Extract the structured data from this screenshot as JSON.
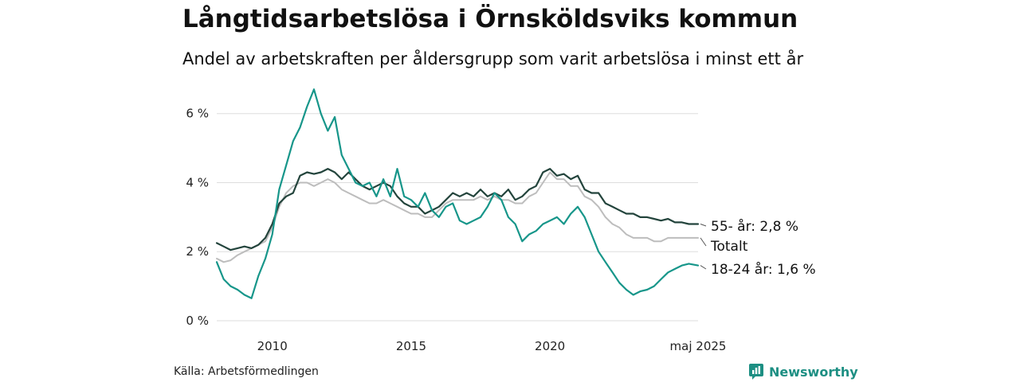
{
  "header": {
    "title": "Långtidsarbetslösa i Örnsköldsviks kommun",
    "subtitle": "Andel av arbetskraften per åldersgrupp som varit arbetslösa i minst ett år"
  },
  "footer": {
    "source": "Källa: Arbetsförmedlingen",
    "brand": "Newsworthy"
  },
  "colors": {
    "youth": "#17968a",
    "older": "#23443c",
    "total": "#bdbdbd",
    "grid": "#dddddd",
    "brand": "#1d8f83"
  },
  "chart_data": {
    "type": "line",
    "title": "Långtidsarbetslösa i Örnsköldsviks kommun",
    "subtitle": "Andel av arbetskraften per åldersgrupp som varit arbetslösa i minst ett år",
    "xlabel": "",
    "ylabel": "",
    "xlim": [
      "2008-01",
      "2025-05"
    ],
    "ylim": [
      0,
      6.8
    ],
    "x_ticks": [
      {
        "x": "2010-01",
        "label": "2010"
      },
      {
        "x": "2015-01",
        "label": "2015"
      },
      {
        "x": "2020-01",
        "label": "2020"
      },
      {
        "x": "2025-05",
        "label": "maj 2025"
      }
    ],
    "y_ticks": [
      {
        "y": 0,
        "label": "0 %"
      },
      {
        "y": 2,
        "label": "2 %"
      },
      {
        "y": 4,
        "label": "4 %"
      },
      {
        "y": 6,
        "label": "6 %"
      }
    ],
    "grid": "horizontal",
    "legend": "direct-labels-right",
    "series": [
      {
        "name": "18-24 år",
        "end_label": "18-24 år: 1,6 %",
        "color": "#17968a",
        "points": [
          [
            "2008-01",
            1.7
          ],
          [
            "2008-04",
            1.2
          ],
          [
            "2008-07",
            1.0
          ],
          [
            "2008-10",
            0.9
          ],
          [
            "2009-01",
            0.75
          ],
          [
            "2009-04",
            0.65
          ],
          [
            "2009-07",
            1.3
          ],
          [
            "2009-10",
            1.8
          ],
          [
            "2010-01",
            2.5
          ],
          [
            "2010-04",
            3.8
          ],
          [
            "2010-07",
            4.5
          ],
          [
            "2010-10",
            5.2
          ],
          [
            "2011-01",
            5.6
          ],
          [
            "2011-04",
            6.2
          ],
          [
            "2011-07",
            6.7
          ],
          [
            "2011-10",
            6.0
          ],
          [
            "2012-01",
            5.5
          ],
          [
            "2012-04",
            5.9
          ],
          [
            "2012-07",
            4.8
          ],
          [
            "2012-10",
            4.4
          ],
          [
            "2013-01",
            4.0
          ],
          [
            "2013-04",
            3.9
          ],
          [
            "2013-07",
            4.0
          ],
          [
            "2013-10",
            3.6
          ],
          [
            "2014-01",
            4.1
          ],
          [
            "2014-04",
            3.6
          ],
          [
            "2014-07",
            4.4
          ],
          [
            "2014-10",
            3.6
          ],
          [
            "2015-01",
            3.5
          ],
          [
            "2015-04",
            3.3
          ],
          [
            "2015-07",
            3.7
          ],
          [
            "2015-10",
            3.2
          ],
          [
            "2016-01",
            3.0
          ],
          [
            "2016-04",
            3.3
          ],
          [
            "2016-07",
            3.4
          ],
          [
            "2016-10",
            2.9
          ],
          [
            "2017-01",
            2.8
          ],
          [
            "2017-04",
            2.9
          ],
          [
            "2017-07",
            3.0
          ],
          [
            "2017-10",
            3.3
          ],
          [
            "2018-01",
            3.7
          ],
          [
            "2018-04",
            3.5
          ],
          [
            "2018-07",
            3.0
          ],
          [
            "2018-10",
            2.8
          ],
          [
            "2019-01",
            2.3
          ],
          [
            "2019-04",
            2.5
          ],
          [
            "2019-07",
            2.6
          ],
          [
            "2019-10",
            2.8
          ],
          [
            "2020-01",
            2.9
          ],
          [
            "2020-04",
            3.0
          ],
          [
            "2020-07",
            2.8
          ],
          [
            "2020-10",
            3.1
          ],
          [
            "2021-01",
            3.3
          ],
          [
            "2021-04",
            3.0
          ],
          [
            "2021-07",
            2.5
          ],
          [
            "2021-10",
            2.0
          ],
          [
            "2022-01",
            1.7
          ],
          [
            "2022-04",
            1.4
          ],
          [
            "2022-07",
            1.1
          ],
          [
            "2022-10",
            0.9
          ],
          [
            "2023-01",
            0.75
          ],
          [
            "2023-04",
            0.85
          ],
          [
            "2023-07",
            0.9
          ],
          [
            "2023-10",
            1.0
          ],
          [
            "2024-01",
            1.2
          ],
          [
            "2024-04",
            1.4
          ],
          [
            "2024-07",
            1.5
          ],
          [
            "2024-10",
            1.6
          ],
          [
            "2025-01",
            1.65
          ],
          [
            "2025-05",
            1.6
          ]
        ]
      },
      {
        "name": "55- år",
        "end_label": "55- år: 2,8 %",
        "color": "#23443c",
        "points": [
          [
            "2008-01",
            2.25
          ],
          [
            "2008-04",
            2.15
          ],
          [
            "2008-07",
            2.05
          ],
          [
            "2008-10",
            2.1
          ],
          [
            "2009-01",
            2.15
          ],
          [
            "2009-04",
            2.1
          ],
          [
            "2009-07",
            2.2
          ],
          [
            "2009-10",
            2.4
          ],
          [
            "2010-01",
            2.8
          ],
          [
            "2010-04",
            3.4
          ],
          [
            "2010-07",
            3.6
          ],
          [
            "2010-10",
            3.7
          ],
          [
            "2011-01",
            4.2
          ],
          [
            "2011-04",
            4.3
          ],
          [
            "2011-07",
            4.25
          ],
          [
            "2011-10",
            4.3
          ],
          [
            "2012-01",
            4.4
          ],
          [
            "2012-04",
            4.3
          ],
          [
            "2012-07",
            4.1
          ],
          [
            "2012-10",
            4.3
          ],
          [
            "2013-01",
            4.1
          ],
          [
            "2013-04",
            3.9
          ],
          [
            "2013-07",
            3.8
          ],
          [
            "2013-10",
            3.9
          ],
          [
            "2014-01",
            4.0
          ],
          [
            "2014-04",
            3.9
          ],
          [
            "2014-07",
            3.6
          ],
          [
            "2014-10",
            3.4
          ],
          [
            "2015-01",
            3.3
          ],
          [
            "2015-04",
            3.3
          ],
          [
            "2015-07",
            3.1
          ],
          [
            "2015-10",
            3.2
          ],
          [
            "2016-01",
            3.3
          ],
          [
            "2016-04",
            3.5
          ],
          [
            "2016-07",
            3.7
          ],
          [
            "2016-10",
            3.6
          ],
          [
            "2017-01",
            3.7
          ],
          [
            "2017-04",
            3.6
          ],
          [
            "2017-07",
            3.8
          ],
          [
            "2017-10",
            3.6
          ],
          [
            "2018-01",
            3.7
          ],
          [
            "2018-04",
            3.6
          ],
          [
            "2018-07",
            3.8
          ],
          [
            "2018-10",
            3.5
          ],
          [
            "2019-01",
            3.6
          ],
          [
            "2019-04",
            3.8
          ],
          [
            "2019-07",
            3.9
          ],
          [
            "2019-10",
            4.3
          ],
          [
            "2020-01",
            4.4
          ],
          [
            "2020-04",
            4.2
          ],
          [
            "2020-07",
            4.25
          ],
          [
            "2020-10",
            4.1
          ],
          [
            "2021-01",
            4.2
          ],
          [
            "2021-04",
            3.8
          ],
          [
            "2021-07",
            3.7
          ],
          [
            "2021-10",
            3.7
          ],
          [
            "2022-01",
            3.4
          ],
          [
            "2022-04",
            3.3
          ],
          [
            "2022-07",
            3.2
          ],
          [
            "2022-10",
            3.1
          ],
          [
            "2023-01",
            3.1
          ],
          [
            "2023-04",
            3.0
          ],
          [
            "2023-07",
            3.0
          ],
          [
            "2023-10",
            2.95
          ],
          [
            "2024-01",
            2.9
          ],
          [
            "2024-04",
            2.95
          ],
          [
            "2024-07",
            2.85
          ],
          [
            "2024-10",
            2.85
          ],
          [
            "2025-01",
            2.8
          ],
          [
            "2025-05",
            2.8
          ]
        ]
      },
      {
        "name": "Totalt",
        "end_label": "Totalt",
        "color": "#bdbdbd",
        "points": [
          [
            "2008-01",
            1.8
          ],
          [
            "2008-04",
            1.7
          ],
          [
            "2008-07",
            1.75
          ],
          [
            "2008-10",
            1.9
          ],
          [
            "2009-01",
            2.0
          ],
          [
            "2009-04",
            2.1
          ],
          [
            "2009-07",
            2.2
          ],
          [
            "2009-10",
            2.3
          ],
          [
            "2010-01",
            2.7
          ],
          [
            "2010-04",
            3.3
          ],
          [
            "2010-07",
            3.7
          ],
          [
            "2010-10",
            3.9
          ],
          [
            "2011-01",
            4.0
          ],
          [
            "2011-04",
            4.0
          ],
          [
            "2011-07",
            3.9
          ],
          [
            "2011-10",
            4.0
          ],
          [
            "2012-01",
            4.1
          ],
          [
            "2012-04",
            4.0
          ],
          [
            "2012-07",
            3.8
          ],
          [
            "2012-10",
            3.7
          ],
          [
            "2013-01",
            3.6
          ],
          [
            "2013-04",
            3.5
          ],
          [
            "2013-07",
            3.4
          ],
          [
            "2013-10",
            3.4
          ],
          [
            "2014-01",
            3.5
          ],
          [
            "2014-04",
            3.4
          ],
          [
            "2014-07",
            3.3
          ],
          [
            "2014-10",
            3.2
          ],
          [
            "2015-01",
            3.1
          ],
          [
            "2015-04",
            3.1
          ],
          [
            "2015-07",
            3.0
          ],
          [
            "2015-10",
            3.0
          ],
          [
            "2016-01",
            3.2
          ],
          [
            "2016-04",
            3.4
          ],
          [
            "2016-07",
            3.5
          ],
          [
            "2016-10",
            3.5
          ],
          [
            "2017-01",
            3.5
          ],
          [
            "2017-04",
            3.5
          ],
          [
            "2017-07",
            3.6
          ],
          [
            "2017-10",
            3.5
          ],
          [
            "2018-01",
            3.6
          ],
          [
            "2018-04",
            3.5
          ],
          [
            "2018-07",
            3.5
          ],
          [
            "2018-10",
            3.4
          ],
          [
            "2019-01",
            3.4
          ],
          [
            "2019-04",
            3.6
          ],
          [
            "2019-07",
            3.7
          ],
          [
            "2019-10",
            4.0
          ],
          [
            "2020-01",
            4.3
          ],
          [
            "2020-04",
            4.1
          ],
          [
            "2020-07",
            4.1
          ],
          [
            "2020-10",
            3.9
          ],
          [
            "2021-01",
            3.9
          ],
          [
            "2021-04",
            3.6
          ],
          [
            "2021-07",
            3.5
          ],
          [
            "2021-10",
            3.3
          ],
          [
            "2022-01",
            3.0
          ],
          [
            "2022-04",
            2.8
          ],
          [
            "2022-07",
            2.7
          ],
          [
            "2022-10",
            2.5
          ],
          [
            "2023-01",
            2.4
          ],
          [
            "2023-04",
            2.4
          ],
          [
            "2023-07",
            2.4
          ],
          [
            "2023-10",
            2.3
          ],
          [
            "2024-01",
            2.3
          ],
          [
            "2024-04",
            2.4
          ],
          [
            "2024-07",
            2.4
          ],
          [
            "2024-10",
            2.4
          ],
          [
            "2025-01",
            2.4
          ],
          [
            "2025-05",
            2.4
          ]
        ]
      }
    ]
  }
}
